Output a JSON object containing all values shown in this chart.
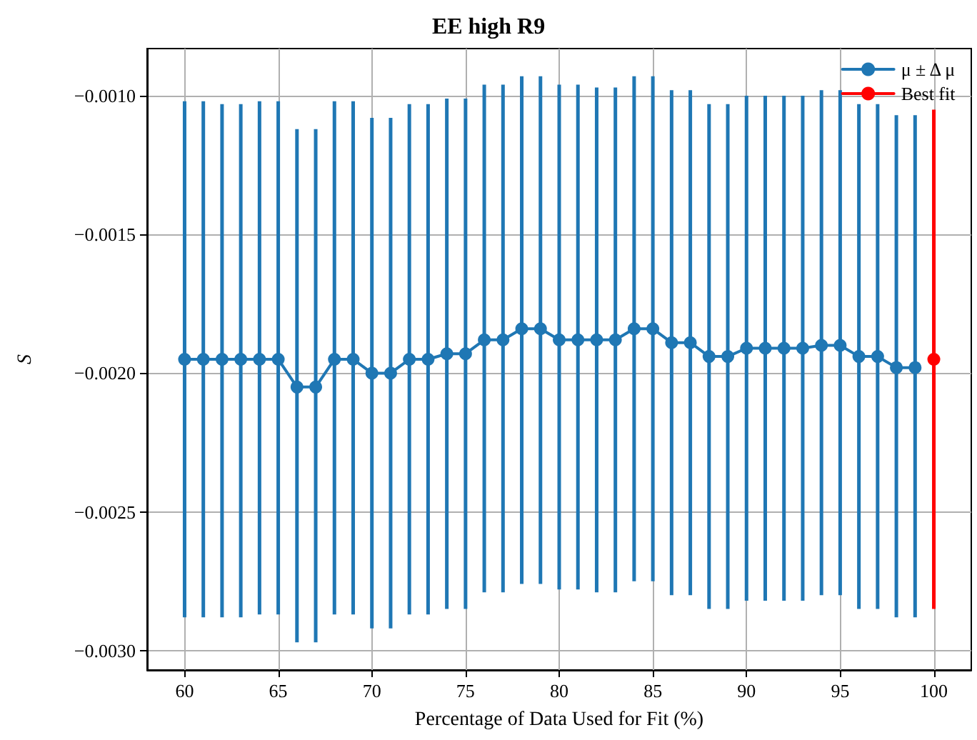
{
  "chart_data": {
    "type": "line",
    "title": "EE high R9",
    "xlabel": "Percentage of Data Used for Fit (%)",
    "ylabel": "S",
    "xlim": [
      58,
      102
    ],
    "xticks": [
      60,
      65,
      70,
      75,
      80,
      85,
      90,
      95,
      100
    ],
    "ylim": [
      -0.00307,
      -0.00083
    ],
    "yticks": [
      {
        "value": -0.003,
        "label": "−0.0030"
      },
      {
        "value": -0.0025,
        "label": "−0.0025"
      },
      {
        "value": -0.002,
        "label": "−0.0020"
      },
      {
        "value": -0.0015,
        "label": "−0.0015"
      },
      {
        "value": -0.001,
        "label": "−0.0010"
      }
    ],
    "grid": true,
    "legend": "top right",
    "marker": "circle",
    "line_style": "solid",
    "series": [
      {
        "name": "μ ± Δ μ",
        "color": "#1f77b4",
        "x": [
          60,
          61,
          62,
          63,
          64,
          65,
          66,
          67,
          68,
          69,
          70,
          71,
          72,
          73,
          74,
          75,
          76,
          77,
          78,
          79,
          80,
          81,
          82,
          83,
          84,
          85,
          86,
          87,
          88,
          89,
          90,
          91,
          92,
          93,
          94,
          95,
          96,
          97,
          98,
          99
        ],
        "values": [
          -0.00195,
          -0.00195,
          -0.00195,
          -0.00195,
          -0.00195,
          -0.00195,
          -0.00205,
          -0.00205,
          -0.00195,
          -0.00195,
          -0.002,
          -0.002,
          -0.00195,
          -0.00195,
          -0.00193,
          -0.00193,
          -0.00188,
          -0.00188,
          -0.00184,
          -0.00184,
          -0.00188,
          -0.00188,
          -0.00188,
          -0.00188,
          -0.00184,
          -0.00184,
          -0.00189,
          -0.00189,
          -0.00194,
          -0.00194,
          -0.00191,
          -0.00191,
          -0.00191,
          -0.00191,
          -0.0019,
          -0.0019,
          -0.00194,
          -0.00194,
          -0.00198,
          -0.00198
        ],
        "errors": [
          [
            -0.00288,
            -0.00102
          ],
          [
            -0.00288,
            -0.00102
          ],
          [
            -0.00288,
            -0.00103
          ],
          [
            -0.00288,
            -0.00103
          ],
          [
            -0.00287,
            -0.00102
          ],
          [
            -0.00287,
            -0.00102
          ],
          [
            -0.00297,
            -0.00112
          ],
          [
            -0.00297,
            -0.00112
          ],
          [
            -0.00287,
            -0.00102
          ],
          [
            -0.00287,
            -0.00102
          ],
          [
            -0.00292,
            -0.00108
          ],
          [
            -0.00292,
            -0.00108
          ],
          [
            -0.00287,
            -0.00103
          ],
          [
            -0.00287,
            -0.00103
          ],
          [
            -0.00285,
            -0.00101
          ],
          [
            -0.00285,
            -0.00101
          ],
          [
            -0.00279,
            -0.00096
          ],
          [
            -0.00279,
            -0.00096
          ],
          [
            -0.00276,
            -0.00093
          ],
          [
            -0.00276,
            -0.00093
          ],
          [
            -0.00278,
            -0.00096
          ],
          [
            -0.00278,
            -0.00096
          ],
          [
            -0.00279,
            -0.00097
          ],
          [
            -0.00279,
            -0.00097
          ],
          [
            -0.00275,
            -0.00093
          ],
          [
            -0.00275,
            -0.00093
          ],
          [
            -0.0028,
            -0.00098
          ],
          [
            -0.0028,
            -0.00098
          ],
          [
            -0.00285,
            -0.00103
          ],
          [
            -0.00285,
            -0.00103
          ],
          [
            -0.00282,
            -0.001
          ],
          [
            -0.00282,
            -0.001
          ],
          [
            -0.00282,
            -0.001
          ],
          [
            -0.00282,
            -0.001
          ],
          [
            -0.0028,
            -0.00098
          ],
          [
            -0.0028,
            -0.00098
          ],
          [
            -0.00285,
            -0.00103
          ],
          [
            -0.00285,
            -0.00103
          ],
          [
            -0.00288,
            -0.00107
          ],
          [
            -0.00288,
            -0.00107
          ]
        ]
      },
      {
        "name": "Best fit",
        "color": "#ff0000",
        "x": [
          100
        ],
        "values": [
          -0.00195
        ],
        "errors": [
          [
            -0.00285,
            -0.00105
          ]
        ]
      }
    ]
  }
}
